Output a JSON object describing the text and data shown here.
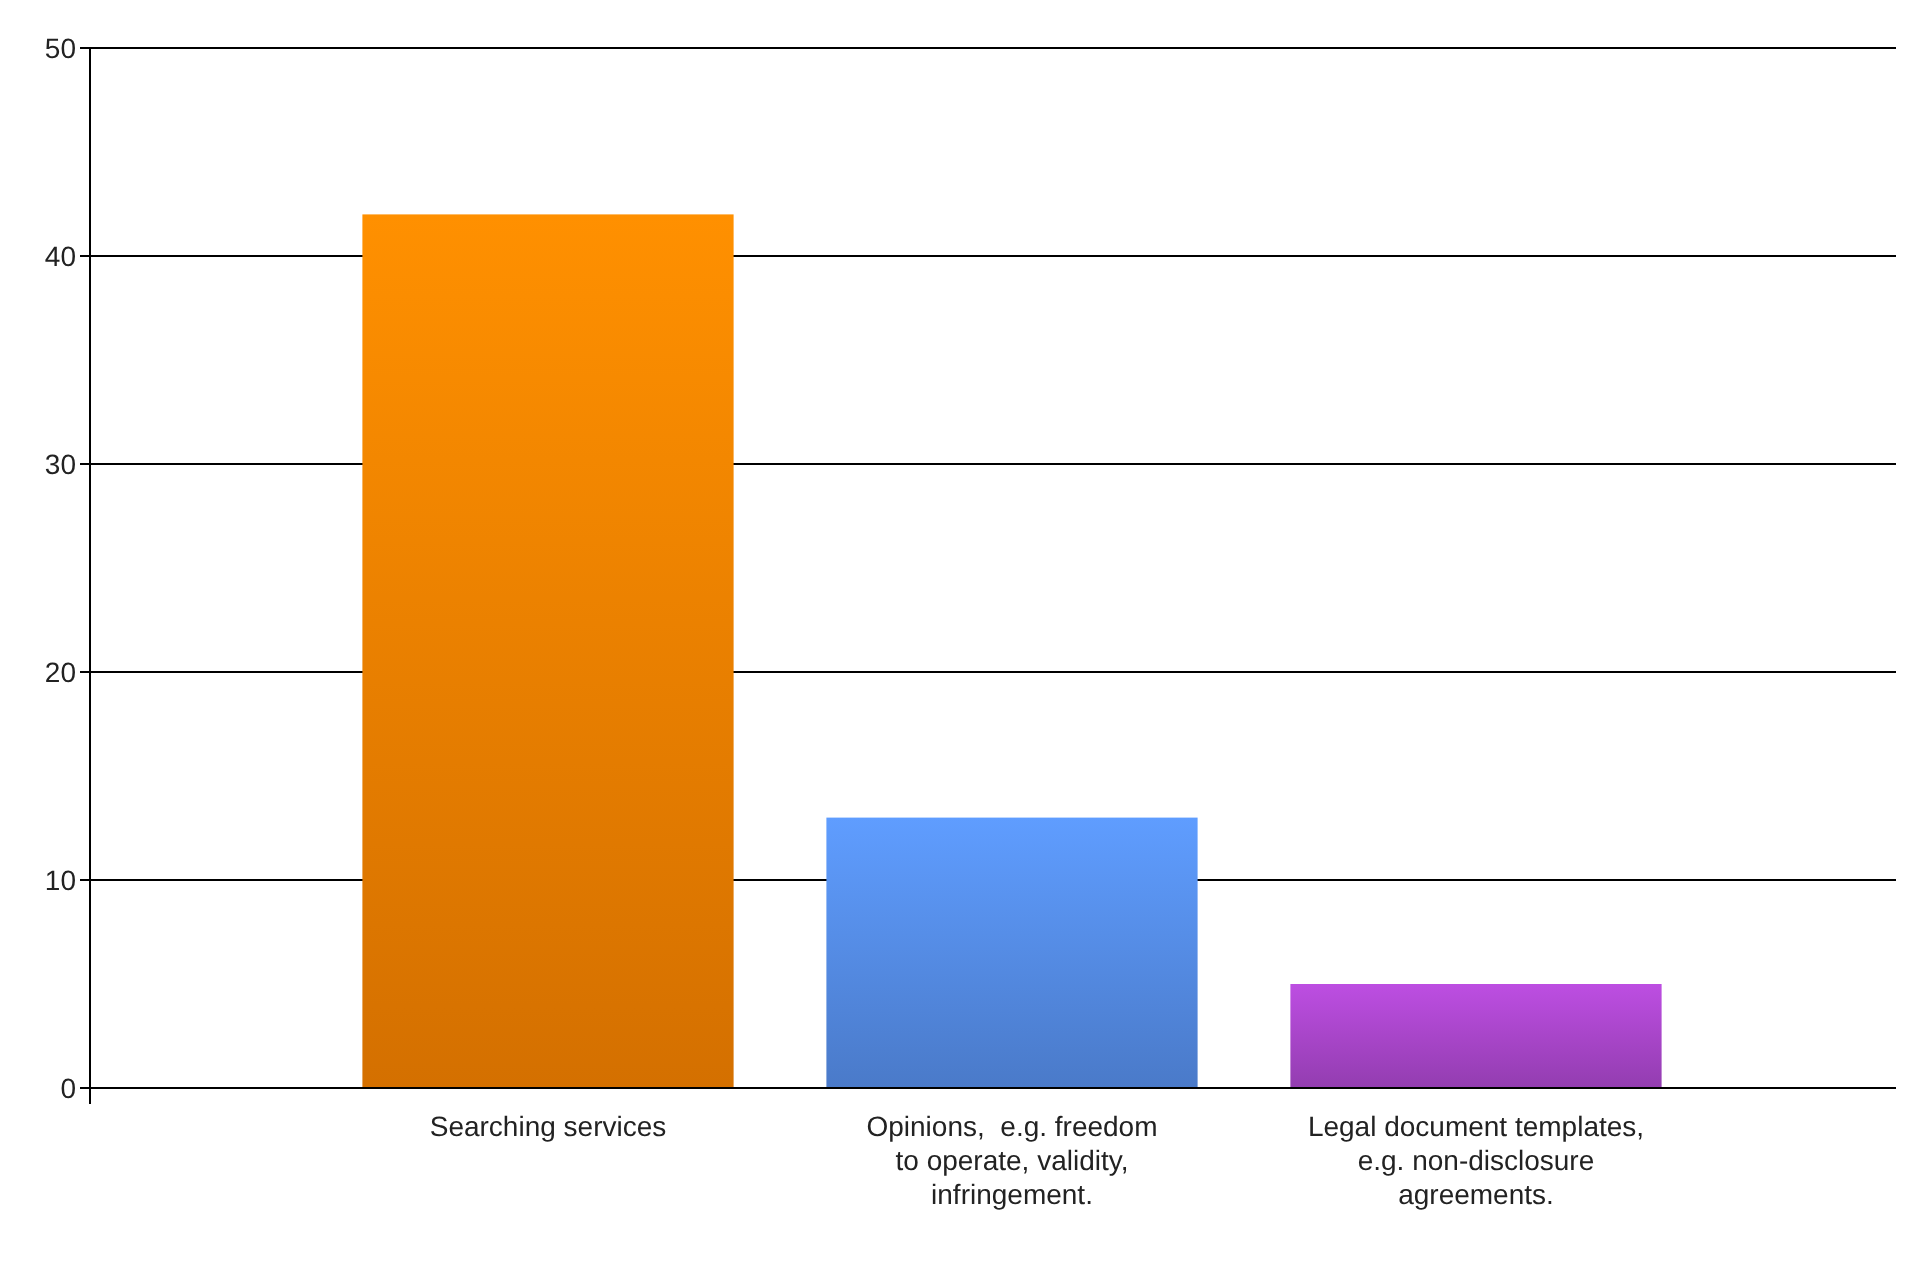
{
  "chart_data": {
    "type": "bar",
    "categories": [
      "Searching services",
      "Opinions,  e.g. freedom to operate, validity, infringement.",
      "Legal document templates, e.g. non-disclosure agreements."
    ],
    "values": [
      42,
      13,
      5
    ],
    "colors": [
      "#ec7d00",
      "#5288e0",
      "#a444c4"
    ],
    "ylim": [
      0,
      50
    ],
    "yticks": [
      0,
      10,
      20,
      30,
      40,
      50
    ],
    "grid": "y"
  }
}
